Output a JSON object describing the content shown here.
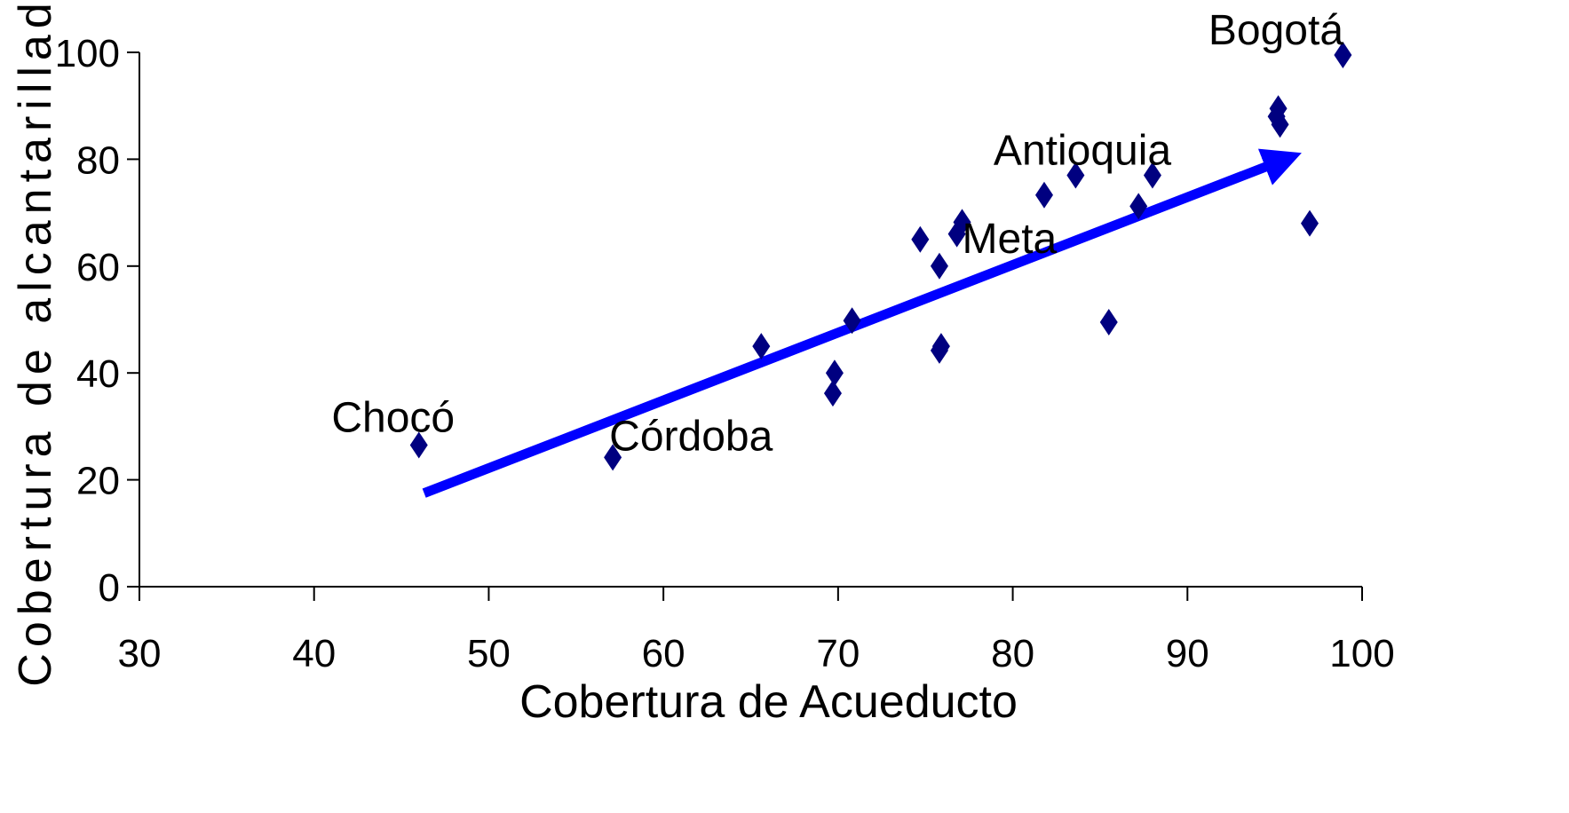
{
  "chart_data": {
    "type": "scatter",
    "xlabel": "Cobertura de Acueducto",
    "ylabel": "Cobertura de alcantarillado",
    "xlim": [
      30,
      100
    ],
    "ylim": [
      0,
      100
    ],
    "xticks": [
      30,
      40,
      50,
      60,
      70,
      80,
      90,
      100
    ],
    "yticks": [
      0,
      20,
      40,
      60,
      80,
      100
    ],
    "grid": false,
    "marker": "diamond",
    "marker_color": "#000080",
    "points": [
      {
        "x": 46.0,
        "y": 26.5
      },
      {
        "x": 57.1,
        "y": 24.2
      },
      {
        "x": 65.6,
        "y": 45.0
      },
      {
        "x": 69.8,
        "y": 40.0
      },
      {
        "x": 69.7,
        "y": 36.2
      },
      {
        "x": 70.8,
        "y": 49.8
      },
      {
        "x": 74.7,
        "y": 65.0
      },
      {
        "x": 75.8,
        "y": 60.0
      },
      {
        "x": 75.9,
        "y": 45.0
      },
      {
        "x": 75.8,
        "y": 44.2
      },
      {
        "x": 76.8,
        "y": 66.0
      },
      {
        "x": 77.1,
        "y": 68.2
      },
      {
        "x": 81.8,
        "y": 73.3
      },
      {
        "x": 83.6,
        "y": 77.0
      },
      {
        "x": 85.5,
        "y": 49.5
      },
      {
        "x": 87.2,
        "y": 71.2
      },
      {
        "x": 88.0,
        "y": 77.0
      },
      {
        "x": 95.2,
        "y": 89.5
      },
      {
        "x": 95.1,
        "y": 88.0
      },
      {
        "x": 95.3,
        "y": 86.5
      },
      {
        "x": 97.0,
        "y": 68.0
      },
      {
        "x": 98.9,
        "y": 99.5
      }
    ],
    "annotations": [
      {
        "text": "Chocó",
        "x": 41.0,
        "y": 29.0
      },
      {
        "text": "Córdoba",
        "x": 56.9,
        "y": 25.5
      },
      {
        "text": "Meta",
        "x": 77.1,
        "y": 62.5
      },
      {
        "text": "Antioquia",
        "x": 78.9,
        "y": 79.0
      },
      {
        "text": "Bogotá",
        "x": 91.2,
        "y": 101.5
      }
    ],
    "trend_arrow": {
      "x1": 46.3,
      "y1": 17.5,
      "x2": 95.6,
      "y2": 80.0,
      "color": "#0000ff"
    }
  }
}
